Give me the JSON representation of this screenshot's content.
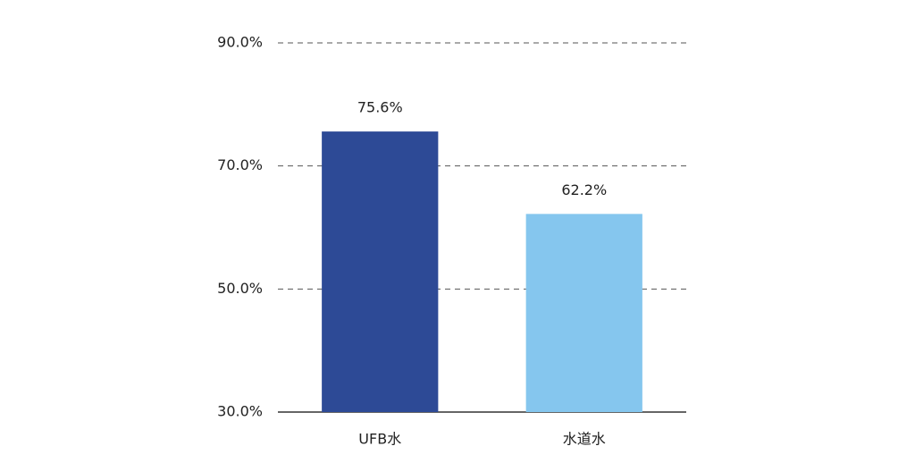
{
  "chart_data": {
    "type": "bar",
    "categories": [
      "UFB水",
      "水道水"
    ],
    "values": [
      75.6,
      62.2
    ],
    "value_labels": [
      "75.6%",
      "62.2%"
    ],
    "colors": [
      "#2d4a96",
      "#85c6ee"
    ],
    "ylim": [
      30,
      90
    ],
    "yticks": [
      {
        "value": 30,
        "label": "30.0%"
      },
      {
        "value": 50,
        "label": "50.0%"
      },
      {
        "value": 70,
        "label": "70.0%"
      },
      {
        "value": 90,
        "label": "90.0%"
      }
    ],
    "grid": true
  }
}
